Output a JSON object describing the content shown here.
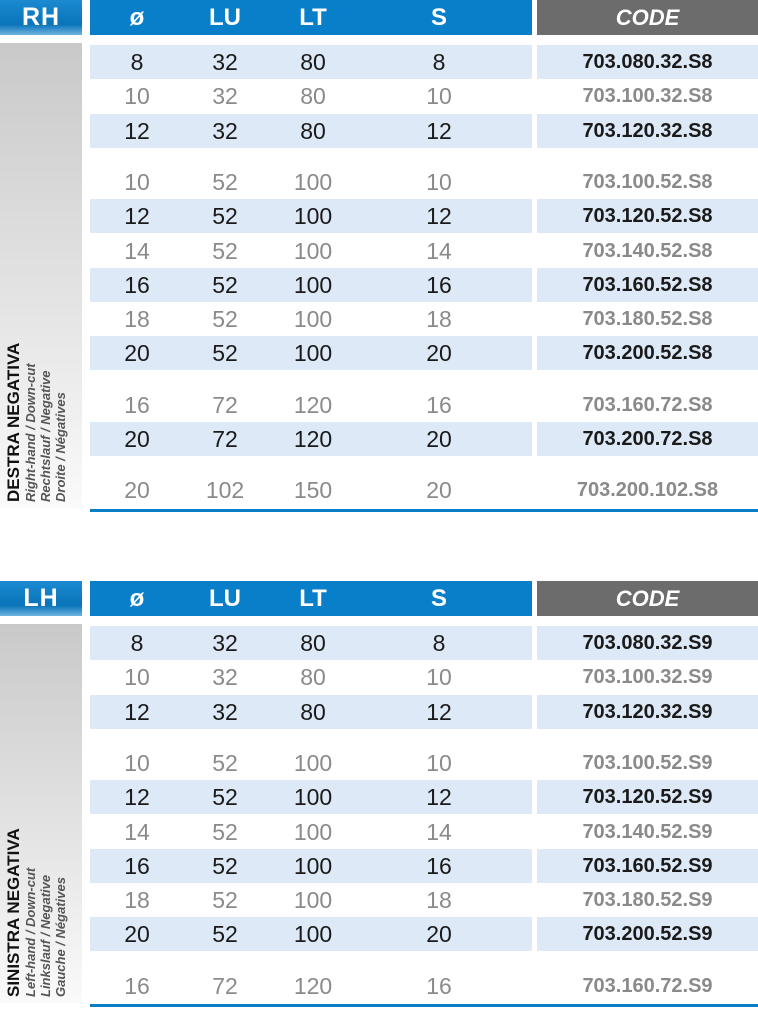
{
  "columns": [
    "ø",
    "LU",
    "LT",
    "S"
  ],
  "code_header": "CODE",
  "colors": {
    "header_blue": "#0a7fc9",
    "code_header_gray": "#6c6c6c",
    "row_highlight": "#dde9f6"
  },
  "sections": [
    {
      "id": "rh",
      "badge": "RH",
      "title": "DESTRA NEGATIVA",
      "subtitles": [
        "Right-hand / Down-cut",
        "Rechtslauf / Negative",
        "Droite / Négatives"
      ],
      "groups": [
        [
          {
            "d": "8",
            "lu": "32",
            "lt": "80",
            "s": "8",
            "code": "703.080.32.S8",
            "hl": true
          },
          {
            "d": "10",
            "lu": "32",
            "lt": "80",
            "s": "10",
            "code": "703.100.32.S8",
            "hl": false
          },
          {
            "d": "12",
            "lu": "32",
            "lt": "80",
            "s": "12",
            "code": "703.120.32.S8",
            "hl": true
          }
        ],
        [
          {
            "d": "10",
            "lu": "52",
            "lt": "100",
            "s": "10",
            "code": "703.100.52.S8",
            "hl": false
          },
          {
            "d": "12",
            "lu": "52",
            "lt": "100",
            "s": "12",
            "code": "703.120.52.S8",
            "hl": true
          },
          {
            "d": "14",
            "lu": "52",
            "lt": "100",
            "s": "14",
            "code": "703.140.52.S8",
            "hl": false
          },
          {
            "d": "16",
            "lu": "52",
            "lt": "100",
            "s": "16",
            "code": "703.160.52.S8",
            "hl": true
          },
          {
            "d": "18",
            "lu": "52",
            "lt": "100",
            "s": "18",
            "code": "703.180.52.S8",
            "hl": false
          },
          {
            "d": "20",
            "lu": "52",
            "lt": "100",
            "s": "20",
            "code": "703.200.52.S8",
            "hl": true
          }
        ],
        [
          {
            "d": "16",
            "lu": "72",
            "lt": "120",
            "s": "16",
            "code": "703.160.72.S8",
            "hl": false
          },
          {
            "d": "20",
            "lu": "72",
            "lt": "120",
            "s": "20",
            "code": "703.200.72.S8",
            "hl": true
          }
        ],
        [
          {
            "d": "20",
            "lu": "102",
            "lt": "150",
            "s": "20",
            "code": "703.200.102.S8",
            "hl": false
          }
        ]
      ]
    },
    {
      "id": "lh",
      "badge": "LH",
      "title": "SINISTRA NEGATIVA",
      "subtitles": [
        "Left-hand / Down-cut",
        "Linkslauf / Negative",
        "Gauche / Négatives"
      ],
      "groups": [
        [
          {
            "d": "8",
            "lu": "32",
            "lt": "80",
            "s": "8",
            "code": "703.080.32.S9",
            "hl": true
          },
          {
            "d": "10",
            "lu": "32",
            "lt": "80",
            "s": "10",
            "code": "703.100.32.S9",
            "hl": false
          },
          {
            "d": "12",
            "lu": "32",
            "lt": "80",
            "s": "12",
            "code": "703.120.32.S9",
            "hl": true
          }
        ],
        [
          {
            "d": "10",
            "lu": "52",
            "lt": "100",
            "s": "10",
            "code": "703.100.52.S9",
            "hl": false
          },
          {
            "d": "12",
            "lu": "52",
            "lt": "100",
            "s": "12",
            "code": "703.120.52.S9",
            "hl": true
          },
          {
            "d": "14",
            "lu": "52",
            "lt": "100",
            "s": "14",
            "code": "703.140.52.S9",
            "hl": false
          },
          {
            "d": "16",
            "lu": "52",
            "lt": "100",
            "s": "16",
            "code": "703.160.52.S9",
            "hl": true
          },
          {
            "d": "18",
            "lu": "52",
            "lt": "100",
            "s": "18",
            "code": "703.180.52.S9",
            "hl": false
          },
          {
            "d": "20",
            "lu": "52",
            "lt": "100",
            "s": "20",
            "code": "703.200.52.S9",
            "hl": true
          }
        ],
        [
          {
            "d": "16",
            "lu": "72",
            "lt": "120",
            "s": "16",
            "code": "703.160.72.S9",
            "hl": false
          }
        ]
      ]
    }
  ]
}
